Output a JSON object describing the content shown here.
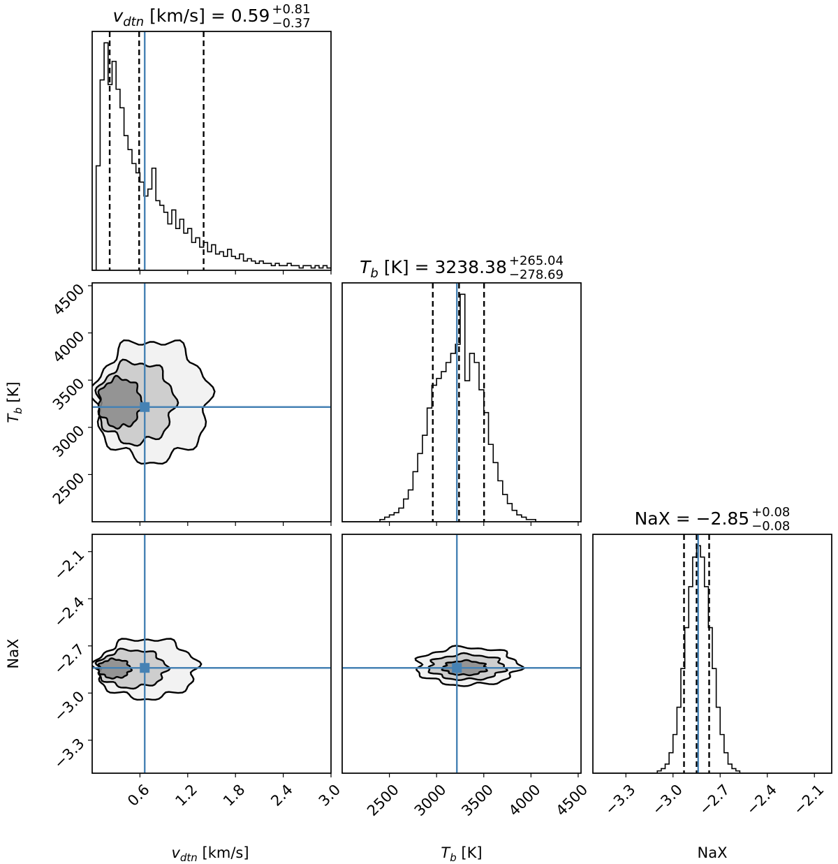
{
  "chart_data": {
    "type": "corner",
    "colors": {
      "truth": "#4682b4",
      "line": "#000000",
      "density": "#808080"
    },
    "parameters": [
      {
        "key": "v",
        "label_main": "v",
        "label_sub": "dtn",
        "label_unit": " [km/s]",
        "range": [
          0.0,
          3.0
        ],
        "ticks": [
          0.6,
          1.2,
          1.8,
          2.4,
          3.0
        ],
        "tick_labels": [
          "0.6",
          "1.2",
          "1.8",
          "2.4",
          "3.0"
        ],
        "truth": 0.66,
        "quantiles": [
          0.22,
          0.59,
          1.4
        ],
        "title": {
          "main": "v",
          "sub": "dtn",
          "rest": " [km/s] = 0.59",
          "plus": "+0.81",
          "minus": "−0.37"
        },
        "hist": {
          "bin_start": 0.0,
          "bin_width": 0.05,
          "counts": [
            0,
            45,
            82,
            98,
            80,
            90,
            78,
            70,
            58,
            52,
            46,
            42,
            38,
            32,
            35,
            44,
            30,
            28,
            25,
            20,
            26,
            18,
            22,
            16,
            18,
            12,
            14,
            10,
            12,
            8,
            11,
            7,
            8,
            6,
            9,
            6,
            5,
            7,
            4,
            5,
            4,
            3,
            4,
            3,
            3,
            2,
            3,
            2,
            2,
            3,
            2,
            2,
            1,
            2,
            2,
            1,
            2,
            1,
            2,
            1
          ]
        }
      },
      {
        "key": "T",
        "label_main": "T",
        "label_sub": "b",
        "label_unit": " [K]",
        "range": [
          2000,
          4530
        ],
        "ticks": [
          2500,
          3000,
          3500,
          4000,
          4500
        ],
        "tick_labels": [
          "2500",
          "3000",
          "3500",
          "4000",
          "4500"
        ],
        "truth": 3215,
        "quantiles": [
          2960,
          3238,
          3503
        ],
        "title": {
          "main": "T",
          "sub": "b",
          "rest": " [K] = 3238.38",
          "plus": "+265.04",
          "minus": "−278.69"
        },
        "hist": {
          "bin_start": 2000,
          "bin_width": 50,
          "counts": [
            0,
            0,
            0,
            0,
            0,
            0,
            0,
            0,
            1,
            2,
            3,
            4,
            6,
            10,
            14,
            22,
            30,
            38,
            50,
            60,
            63,
            66,
            70,
            74,
            78,
            100,
            62,
            74,
            70,
            58,
            48,
            34,
            26,
            18,
            12,
            8,
            5,
            3,
            2,
            1,
            1,
            0,
            0,
            0,
            0,
            0,
            0,
            0,
            0,
            0
          ]
        }
      },
      {
        "key": "NaX",
        "label_main": "NaX",
        "label_sub": "",
        "label_unit": "",
        "range": [
          -3.51,
          -1.99
        ],
        "ticks": [
          -3.3,
          -3.0,
          -2.7,
          -2.4,
          -2.1
        ],
        "tick_labels": [
          "−3.3",
          "−3.0",
          "−2.7",
          "−2.4",
          "−2.1"
        ],
        "truth": -2.84,
        "quantiles": [
          -2.93,
          -2.85,
          -2.77
        ],
        "title": {
          "main": "NaX",
          "sub": "",
          "rest": " = −2.85",
          "plus": "+0.08",
          "minus": "−0.08"
        },
        "hist": {
          "bin_start": -3.5,
          "bin_width": 0.025,
          "counts": [
            0,
            0,
            0,
            0,
            0,
            0,
            0,
            0,
            0,
            0,
            0,
            0,
            0,
            0,
            0,
            0,
            1,
            2,
            4,
            9,
            17,
            29,
            46,
            64,
            82,
            95,
            100,
            95,
            82,
            64,
            46,
            29,
            17,
            9,
            4,
            2,
            1,
            0,
            0,
            0,
            0,
            0,
            0,
            0,
            0,
            0,
            0,
            0,
            0,
            0,
            0,
            0,
            0,
            0,
            0,
            0,
            0,
            0,
            0,
            0
          ]
        }
      }
    ],
    "contours_2d": [
      {
        "x": "v",
        "y": "T",
        "levels": [
          {
            "cx": 0.75,
            "cy": 3280,
            "rx": 0.72,
            "ry": 640,
            "tilt": 0
          },
          {
            "cx": 0.55,
            "cy": 3260,
            "rx": 0.48,
            "ry": 430,
            "tilt": 0
          },
          {
            "cx": 0.35,
            "cy": 3260,
            "rx": 0.27,
            "ry": 260,
            "tilt": 0
          }
        ]
      },
      {
        "x": "v",
        "y": "NaX",
        "levels": [
          {
            "cx": 0.68,
            "cy": -2.845,
            "rx": 0.63,
            "ry": 0.19,
            "tilt": 0
          },
          {
            "cx": 0.5,
            "cy": -2.845,
            "rx": 0.43,
            "ry": 0.12,
            "tilt": 0
          },
          {
            "cx": 0.28,
            "cy": -2.845,
            "rx": 0.2,
            "ry": 0.06,
            "tilt": 0
          }
        ]
      },
      {
        "x": "T",
        "y": "NaX",
        "levels": [
          {
            "cx": 3330,
            "cy": -2.83,
            "rx": 540,
            "ry": 0.12,
            "tilt": -14
          },
          {
            "cx": 3320,
            "cy": -2.835,
            "rx": 400,
            "ry": 0.08,
            "tilt": -14
          },
          {
            "cx": 3300,
            "cy": -2.84,
            "rx": 230,
            "ry": 0.045,
            "tilt": -14
          }
        ]
      }
    ]
  }
}
